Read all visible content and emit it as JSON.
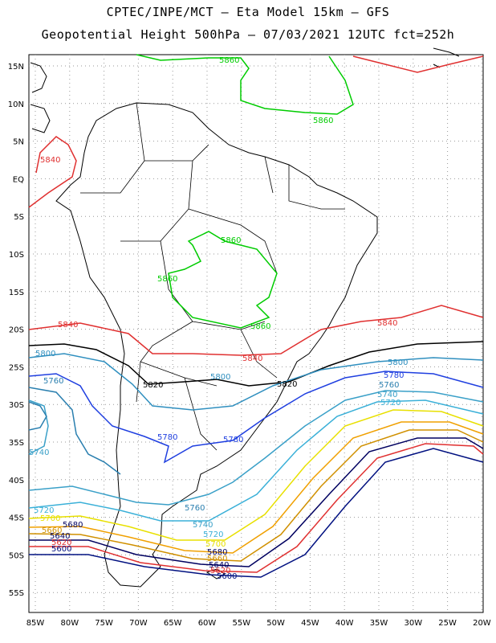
{
  "title_line1": "CPTEC/INPE/MCT –   Eta Model 15km – GFS",
  "title_line2": "Geopotential Height 500hPa – 07/03/2021 12UTC fct=252h",
  "axes": {
    "lon_labels": [
      "85W",
      "80W",
      "75W",
      "70W",
      "65W",
      "60W",
      "55W",
      "50W",
      "45W",
      "40W",
      "35W",
      "30W",
      "25W",
      "20W"
    ],
    "lat_labels": [
      "15N",
      "10N",
      "5N",
      "EQ",
      "5S",
      "10S",
      "15S",
      "20S",
      "25S",
      "30S",
      "35S",
      "40S",
      "45S",
      "50S",
      "55S"
    ]
  },
  "contours": {
    "c5860": {
      "label": "5860",
      "color": "#00cc00"
    },
    "c5840": {
      "label": "5840",
      "color": "#e03030"
    },
    "c5820": {
      "label": "5820",
      "color": "#000000"
    },
    "c5800": {
      "label": "5800",
      "color": "#2f8fbf"
    },
    "c5780": {
      "label": "5780",
      "color": "#1f3fe0"
    },
    "c5760": {
      "label": "5760",
      "color": "#2a7faf"
    },
    "c5740": {
      "label": "5740",
      "color": "#3aa0c8"
    },
    "c5720": {
      "label": "5720",
      "color": "#3ab0d8"
    },
    "c5700": {
      "label": "5700",
      "color": "#e8e000"
    },
    "c5680": {
      "label": "5680",
      "color": "#f0a000"
    },
    "c5660": {
      "label": "5660",
      "color": "#d09000"
    },
    "c5640": {
      "label": "5640",
      "color": "#000060"
    },
    "c5620": {
      "label": "5620",
      "color": "#e03030"
    },
    "c5600": {
      "label": "5600",
      "color": "#001080"
    }
  },
  "colors": {
    "coastline": "#000000",
    "grid": "#999999"
  }
}
